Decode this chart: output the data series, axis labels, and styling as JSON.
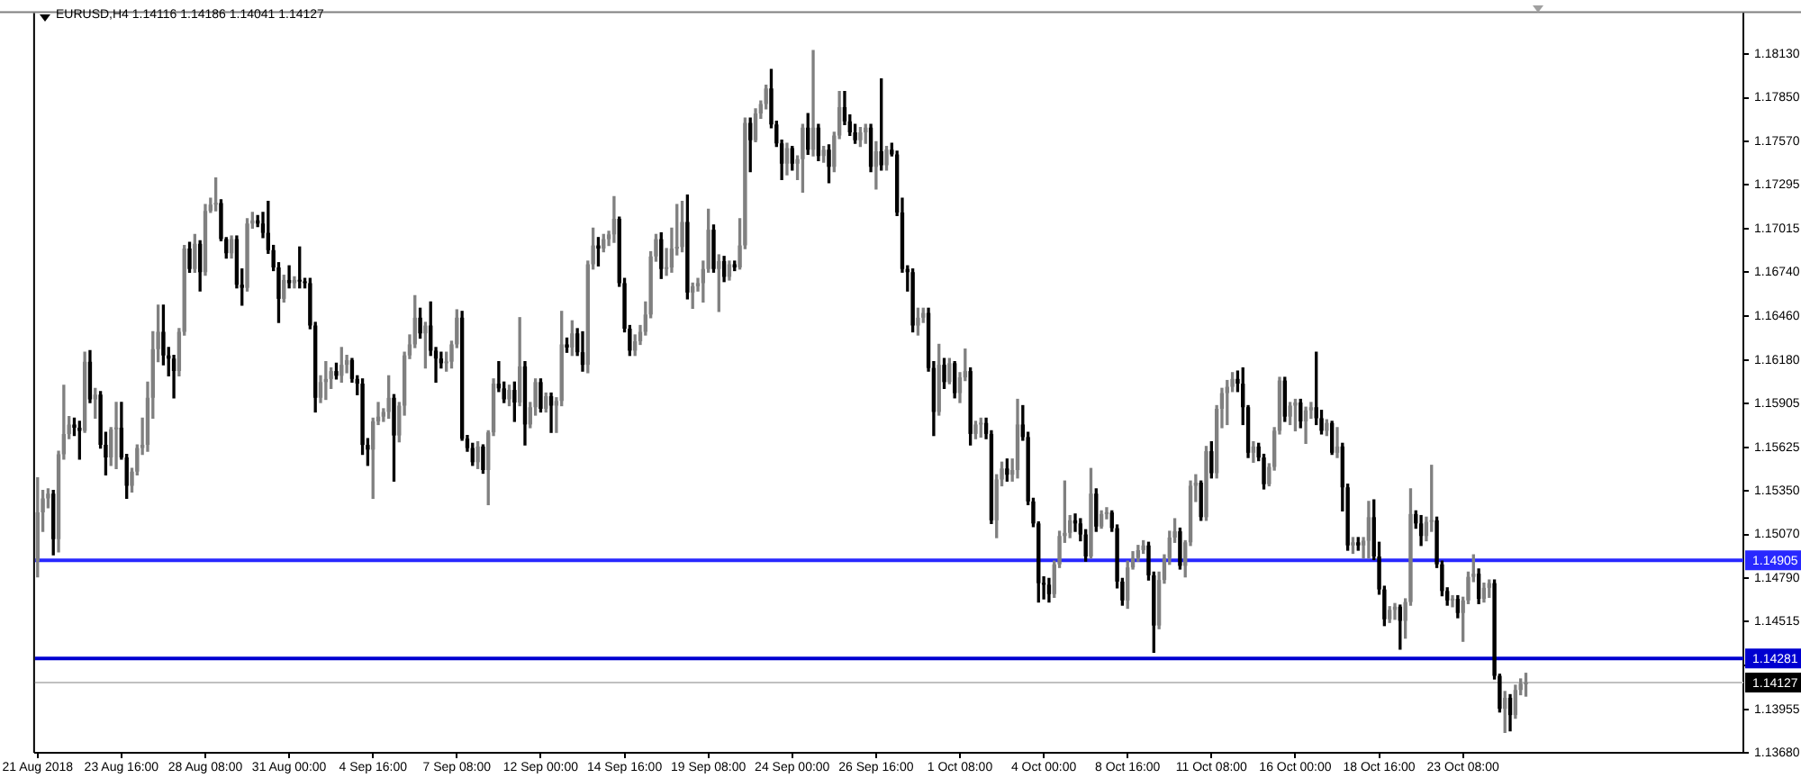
{
  "chart_data": {
    "type": "candlestick",
    "title": "EURUSD,H4 1.14116 1.14186 1.14041 1.14127",
    "categories": [
      "21 Aug 2018",
      null,
      null,
      null,
      null,
      null,
      null,
      null,
      null,
      null,
      null,
      null,
      null,
      null,
      null,
      null,
      "23 Aug 16:00",
      null,
      null,
      null,
      null,
      null,
      null,
      null,
      null,
      null,
      null,
      null,
      null,
      null,
      null,
      null,
      "28 Aug 08:00",
      null,
      null,
      null,
      null,
      null,
      null,
      null,
      null,
      null,
      null,
      null,
      null,
      null,
      null,
      null,
      "31 Aug 00:00",
      null,
      null,
      null,
      null,
      null,
      null,
      null,
      null,
      null,
      null,
      null,
      null,
      null,
      null,
      null,
      "4 Sep 16:00",
      null,
      null,
      null,
      null,
      null,
      null,
      null,
      null,
      null,
      null,
      null,
      null,
      null,
      null,
      null,
      "7 Sep 08:00",
      null,
      null,
      null,
      null,
      null,
      null,
      null,
      null,
      null,
      null,
      null,
      null,
      null,
      null,
      null,
      "12 Sep 00:00",
      null,
      null,
      null,
      null,
      null,
      null,
      null,
      null,
      null,
      null,
      null,
      null,
      null,
      null,
      null,
      "14 Sep 16:00",
      null,
      null,
      null,
      null,
      null,
      null,
      null,
      null,
      null,
      null,
      null,
      null,
      null,
      null,
      null,
      "19 Sep 08:00",
      null,
      null,
      null,
      null,
      null,
      null,
      null,
      null,
      null,
      null,
      null,
      null,
      null,
      null,
      null,
      "24 Sep 00:00",
      null,
      null,
      null,
      null,
      null,
      null,
      null,
      null,
      null,
      null,
      null,
      null,
      null,
      null,
      null,
      "26 Sep 16:00",
      null,
      null,
      null,
      null,
      null,
      null,
      null,
      null,
      null,
      null,
      null,
      null,
      null,
      null,
      null,
      "1 Oct 08:00",
      null,
      null,
      null,
      null,
      null,
      null,
      null,
      null,
      null,
      null,
      null,
      null,
      null,
      null,
      null,
      "4 Oct 00:00",
      null,
      null,
      null,
      null,
      null,
      null,
      null,
      null,
      null,
      null,
      null,
      null,
      null,
      null,
      null,
      "8 Oct 16:00",
      null,
      null,
      null,
      null,
      null,
      null,
      null,
      null,
      null,
      null,
      null,
      null,
      null,
      null,
      null,
      "11 Oct 08:00",
      null,
      null,
      null,
      null,
      null,
      null,
      null,
      null,
      null,
      null,
      null,
      null,
      null,
      null,
      null,
      "16 Oct 00:00",
      null,
      null,
      null,
      null,
      null,
      null,
      null,
      null,
      null,
      null,
      null,
      null,
      null,
      null,
      null,
      "18 Oct 16:00",
      null,
      null,
      null,
      null,
      null,
      null,
      null,
      null,
      null,
      null,
      null,
      null,
      null,
      null,
      null,
      "23 Oct 08:00",
      null,
      null,
      null,
      null,
      null,
      null,
      null,
      null,
      null,
      null,
      null,
      null,
      null,
      null,
      null,
      null,
      null,
      null,
      null,
      null,
      null,
      null,
      null,
      null,
      null,
      null,
      null,
      null,
      null,
      null,
      null,
      null,
      null,
      null,
      null,
      null,
      null,
      null,
      null,
      null,
      null,
      null,
      null,
      null,
      null,
      null,
      null,
      null,
      null,
      null,
      null,
      null,
      null
    ],
    "ohlc": [
      [
        1.149,
        1.1543,
        1.148,
        1.1521
      ],
      [
        1.1521,
        1.1535,
        1.1509,
        1.153
      ],
      [
        1.153,
        1.1536,
        1.1524,
        1.1533
      ],
      [
        1.1533,
        1.1535,
        1.1494,
        1.1504
      ],
      [
        1.1504,
        1.156,
        1.1496,
        1.1558
      ],
      [
        1.1558,
        1.1602,
        1.1555,
        1.1571
      ],
      [
        1.1571,
        1.1582,
        1.1568,
        1.1577
      ],
      [
        1.1577,
        1.1581,
        1.157,
        1.1575
      ],
      [
        1.1575,
        1.1579,
        1.1555,
        1.1573
      ],
      [
        1.1573,
        1.1623,
        1.1572,
        1.1617
      ],
      [
        1.1617,
        1.1624,
        1.1591,
        1.1593
      ],
      [
        1.1593,
        1.16,
        1.1581,
        1.1596
      ],
      [
        1.1596,
        1.1598,
        1.1562,
        1.1564
      ],
      [
        1.1564,
        1.1572,
        1.1545,
        1.1556
      ],
      [
        1.1556,
        1.1575,
        1.1551,
        1.1574
      ],
      [
        1.1574,
        1.1591,
        1.1549,
        1.1575
      ],
      [
        1.1575,
        1.1591,
        1.1555,
        1.1556
      ],
      [
        1.1556,
        1.1558,
        1.153,
        1.1538
      ],
      [
        1.1538,
        1.1549,
        1.1534,
        1.1547
      ],
      [
        1.1547,
        1.1564,
        1.1545,
        1.1562
      ],
      [
        1.1562,
        1.1581,
        1.1558,
        1.1564
      ],
      [
        1.1564,
        1.1604,
        1.156,
        1.1594
      ],
      [
        1.1594,
        1.1636,
        1.1581,
        1.1625
      ],
      [
        1.1625,
        1.1653,
        1.1617,
        1.1636
      ],
      [
        1.1636,
        1.1653,
        1.1615,
        1.1621
      ],
      [
        1.1621,
        1.1626,
        1.1608,
        1.1619
      ],
      [
        1.1619,
        1.1621,
        1.1594,
        1.1611
      ],
      [
        1.1611,
        1.1638,
        1.1608,
        1.1636
      ],
      [
        1.1636,
        1.1691,
        1.1634,
        1.1689
      ],
      [
        1.1689,
        1.1693,
        1.1674,
        1.1676
      ],
      [
        1.1676,
        1.1698,
        1.1674,
        1.1692
      ],
      [
        1.1692,
        1.1694,
        1.1662,
        1.1674
      ],
      [
        1.1674,
        1.1717,
        1.1672,
        1.1713
      ],
      [
        1.1713,
        1.1721,
        1.1712,
        1.1717
      ],
      [
        1.1717,
        1.1734,
        1.1713,
        1.1718
      ],
      [
        1.1718,
        1.172,
        1.1694,
        1.1695
      ],
      [
        1.1695,
        1.1696,
        1.1683,
        1.1686
      ],
      [
        1.1686,
        1.1697,
        1.1683,
        1.1695
      ],
      [
        1.1695,
        1.1697,
        1.1664,
        1.1666
      ],
      [
        1.1666,
        1.1676,
        1.1653,
        1.1664
      ],
      [
        1.1664,
        1.1708,
        1.1662,
        1.1705
      ],
      [
        1.1705,
        1.1712,
        1.1702,
        1.1707
      ],
      [
        1.1707,
        1.171,
        1.1703,
        1.1705
      ],
      [
        1.1705,
        1.1712,
        1.1696,
        1.1699
      ],
      [
        1.1699,
        1.1719,
        1.1686,
        1.1688
      ],
      [
        1.1688,
        1.1691,
        1.1675,
        1.1677
      ],
      [
        1.1677,
        1.168,
        1.1642,
        1.1657
      ],
      [
        1.1657,
        1.1672,
        1.1655,
        1.1669
      ],
      [
        1.1669,
        1.1678,
        1.1664,
        1.1667
      ],
      [
        1.1667,
        1.1671,
        1.1664,
        1.1669
      ],
      [
        1.1669,
        1.169,
        1.1664,
        1.1668
      ],
      [
        1.1668,
        1.167,
        1.1664,
        1.1667
      ],
      [
        1.1667,
        1.167,
        1.1638,
        1.164
      ],
      [
        1.164,
        1.1642,
        1.1585,
        1.1594
      ],
      [
        1.1594,
        1.1608,
        1.1591,
        1.1604
      ],
      [
        1.1604,
        1.1617,
        1.1593,
        1.1606
      ],
      [
        1.1606,
        1.1613,
        1.16,
        1.1611
      ],
      [
        1.1611,
        1.1616,
        1.1606,
        1.1608
      ],
      [
        1.1608,
        1.1626,
        1.1604,
        1.1615
      ],
      [
        1.1615,
        1.1621,
        1.161,
        1.1618
      ],
      [
        1.1618,
        1.1619,
        1.1604,
        1.1606
      ],
      [
        1.1606,
        1.1608,
        1.1596,
        1.1603
      ],
      [
        1.1603,
        1.1606,
        1.1558,
        1.1564
      ],
      [
        1.1564,
        1.1568,
        1.1551,
        1.1561
      ],
      [
        1.1561,
        1.1581,
        1.153,
        1.1579
      ],
      [
        1.1579,
        1.1591,
        1.1577,
        1.1582
      ],
      [
        1.1582,
        1.1587,
        1.1579,
        1.1585
      ],
      [
        1.1585,
        1.1608,
        1.1581,
        1.1594
      ],
      [
        1.1594,
        1.1596,
        1.1541,
        1.157
      ],
      [
        1.157,
        1.1591,
        1.1566,
        1.1589
      ],
      [
        1.1589,
        1.1623,
        1.1583,
        1.1621
      ],
      [
        1.1621,
        1.1634,
        1.1619,
        1.1628
      ],
      [
        1.1628,
        1.1659,
        1.1626,
        1.1645
      ],
      [
        1.1645,
        1.1651,
        1.1632,
        1.1635
      ],
      [
        1.1635,
        1.1642,
        1.1613,
        1.164
      ],
      [
        1.164,
        1.1655,
        1.1621,
        1.1624
      ],
      [
        1.1624,
        1.1626,
        1.1604,
        1.1619
      ],
      [
        1.1619,
        1.1623,
        1.1613,
        1.1616
      ],
      [
        1.1616,
        1.1623,
        1.1611,
        1.1617
      ],
      [
        1.1617,
        1.163,
        1.1613,
        1.1628
      ],
      [
        1.1628,
        1.165,
        1.1626,
        1.1645
      ],
      [
        1.1645,
        1.1649,
        1.1567,
        1.1568
      ],
      [
        1.1568,
        1.157,
        1.156,
        1.1562
      ],
      [
        1.1562,
        1.1565,
        1.1551,
        1.1553
      ],
      [
        1.1553,
        1.1566,
        1.1549,
        1.1563
      ],
      [
        1.1563,
        1.1564,
        1.1546,
        1.1548
      ],
      [
        1.1548,
        1.1573,
        1.1526,
        1.1572
      ],
      [
        1.1572,
        1.1606,
        1.157,
        1.1603
      ],
      [
        1.1603,
        1.1617,
        1.1598,
        1.16
      ],
      [
        1.16,
        1.1604,
        1.1591,
        1.1593
      ],
      [
        1.1593,
        1.1602,
        1.1589,
        1.1599
      ],
      [
        1.1599,
        1.1604,
        1.1579,
        1.1591
      ],
      [
        1.1591,
        1.1645,
        1.1589,
        1.1614
      ],
      [
        1.1614,
        1.1617,
        1.1564,
        1.1577
      ],
      [
        1.1577,
        1.1591,
        1.1575,
        1.1588
      ],
      [
        1.1588,
        1.1606,
        1.1583,
        1.1604
      ],
      [
        1.1604,
        1.1606,
        1.1585,
        1.1587
      ],
      [
        1.1587,
        1.1597,
        1.1585,
        1.1595
      ],
      [
        1.1595,
        1.1597,
        1.1572,
        1.1589
      ],
      [
        1.1589,
        1.1594,
        1.1572,
        1.1592
      ],
      [
        1.1592,
        1.1649,
        1.1589,
        1.1628
      ],
      [
        1.1628,
        1.1632,
        1.1623,
        1.1626
      ],
      [
        1.1626,
        1.1643,
        1.1621,
        1.1635
      ],
      [
        1.1635,
        1.1638,
        1.1621,
        1.1623
      ],
      [
        1.1623,
        1.1636,
        1.1611,
        1.1615
      ],
      [
        1.1615,
        1.1681,
        1.161,
        1.1679
      ],
      [
        1.1679,
        1.1702,
        1.1676,
        1.1691
      ],
      [
        1.1691,
        1.1696,
        1.1678,
        1.1689
      ],
      [
        1.1689,
        1.1698,
        1.1687,
        1.1695
      ],
      [
        1.1695,
        1.17,
        1.1691,
        1.1698
      ],
      [
        1.1698,
        1.1722,
        1.1693,
        1.1708
      ],
      [
        1.1708,
        1.1709,
        1.1665,
        1.1667
      ],
      [
        1.1667,
        1.167,
        1.1636,
        1.1638
      ],
      [
        1.1638,
        1.164,
        1.1621,
        1.1624
      ],
      [
        1.1624,
        1.1634,
        1.1621,
        1.163
      ],
      [
        1.163,
        1.164,
        1.1628,
        1.1636
      ],
      [
        1.1636,
        1.1655,
        1.1634,
        1.1647
      ],
      [
        1.1647,
        1.1687,
        1.1645,
        1.1684
      ],
      [
        1.1684,
        1.1698,
        1.1681,
        1.1695
      ],
      [
        1.1695,
        1.1699,
        1.167,
        1.1676
      ],
      [
        1.1676,
        1.1689,
        1.1672,
        1.1677
      ],
      [
        1.1677,
        1.1702,
        1.1674,
        1.1689
      ],
      [
        1.1689,
        1.1717,
        1.1685,
        1.169
      ],
      [
        1.169,
        1.1719,
        1.1687,
        1.1706
      ],
      [
        1.1706,
        1.1723,
        1.1657,
        1.1661
      ],
      [
        1.1661,
        1.1667,
        1.1651,
        1.1665
      ],
      [
        1.1665,
        1.167,
        1.1662,
        1.1667
      ],
      [
        1.1667,
        1.1681,
        1.1655,
        1.1676
      ],
      [
        1.1676,
        1.1714,
        1.1674,
        1.1701
      ],
      [
        1.1701,
        1.1704,
        1.1674,
        1.1676
      ],
      [
        1.1676,
        1.1685,
        1.1649,
        1.1681
      ],
      [
        1.1681,
        1.1684,
        1.1668,
        1.1671
      ],
      [
        1.1671,
        1.1681,
        1.1669,
        1.1679
      ],
      [
        1.1679,
        1.1681,
        1.1675,
        1.1677
      ],
      [
        1.1677,
        1.1708,
        1.1676,
        1.1691
      ],
      [
        1.1691,
        1.1772,
        1.1689,
        1.1769
      ],
      [
        1.1769,
        1.1772,
        1.1738,
        1.1758
      ],
      [
        1.1758,
        1.1778,
        1.1757,
        1.1775
      ],
      [
        1.1775,
        1.1783,
        1.1772,
        1.1781
      ],
      [
        1.1781,
        1.1793,
        1.1778,
        1.1791
      ],
      [
        1.1791,
        1.1803,
        1.1766,
        1.1768
      ],
      [
        1.1768,
        1.177,
        1.1754,
        1.1756
      ],
      [
        1.1756,
        1.1758,
        1.1733,
        1.1743
      ],
      [
        1.1743,
        1.1756,
        1.1736,
        1.1753
      ],
      [
        1.1753,
        1.1754,
        1.1739,
        1.1743
      ],
      [
        1.1743,
        1.1748,
        1.1733,
        1.1746
      ],
      [
        1.1746,
        1.1768,
        1.1725,
        1.1766
      ],
      [
        1.1766,
        1.1775,
        1.1749,
        1.1752
      ],
      [
        1.1752,
        1.1815,
        1.1748,
        1.1766
      ],
      [
        1.1766,
        1.1768,
        1.1745,
        1.1748
      ],
      [
        1.1748,
        1.1754,
        1.1744,
        1.1752
      ],
      [
        1.1752,
        1.1755,
        1.1731,
        1.1741
      ],
      [
        1.1741,
        1.1763,
        1.1738,
        1.1761
      ],
      [
        1.1761,
        1.1789,
        1.1759,
        1.1779
      ],
      [
        1.1779,
        1.1789,
        1.1768,
        1.177
      ],
      [
        1.177,
        1.1774,
        1.1761,
        1.1763
      ],
      [
        1.1763,
        1.1768,
        1.1756,
        1.1758
      ],
      [
        1.1758,
        1.1766,
        1.1754,
        1.1763
      ],
      [
        1.1763,
        1.1768,
        1.1756,
        1.1766
      ],
      [
        1.1766,
        1.1768,
        1.1738,
        1.1741
      ],
      [
        1.1741,
        1.1757,
        1.1727,
        1.1751
      ],
      [
        1.1751,
        1.1797,
        1.1739,
        1.1742
      ],
      [
        1.1742,
        1.1754,
        1.1739,
        1.1752
      ],
      [
        1.1752,
        1.1756,
        1.1748,
        1.1749
      ],
      [
        1.1749,
        1.1751,
        1.171,
        1.1712
      ],
      [
        1.1712,
        1.1721,
        1.1674,
        1.1676
      ],
      [
        1.1676,
        1.1678,
        1.1662,
        1.1674
      ],
      [
        1.1674,
        1.1676,
        1.1636,
        1.164
      ],
      [
        1.164,
        1.1651,
        1.1634,
        1.1645
      ],
      [
        1.1645,
        1.1651,
        1.1642,
        1.1648
      ],
      [
        1.1648,
        1.1651,
        1.1611,
        1.1613
      ],
      [
        1.1613,
        1.1617,
        1.157,
        1.1585
      ],
      [
        1.1585,
        1.1628,
        1.1583,
        1.1615
      ],
      [
        1.1615,
        1.1619,
        1.16,
        1.1604
      ],
      [
        1.1604,
        1.1619,
        1.1603,
        1.1616
      ],
      [
        1.1616,
        1.1617,
        1.1594,
        1.1597
      ],
      [
        1.1597,
        1.161,
        1.1591,
        1.1607
      ],
      [
        1.1607,
        1.1625,
        1.1605,
        1.1611
      ],
      [
        1.1611,
        1.1613,
        1.1564,
        1.1571
      ],
      [
        1.1571,
        1.1579,
        1.1568,
        1.1577
      ],
      [
        1.1577,
        1.1581,
        1.1569,
        1.1578
      ],
      [
        1.1578,
        1.1581,
        1.1568,
        1.1571
      ],
      [
        1.1571,
        1.1573,
        1.1514,
        1.1516
      ],
      [
        1.1516,
        1.1545,
        1.1505,
        1.1542
      ],
      [
        1.1542,
        1.1553,
        1.1538,
        1.1549
      ],
      [
        1.1549,
        1.1555,
        1.1541,
        1.1545
      ],
      [
        1.1545,
        1.1555,
        1.1541,
        1.1548
      ],
      [
        1.1548,
        1.1593,
        1.1543,
        1.1577
      ],
      [
        1.1577,
        1.1589,
        1.1567,
        1.1569
      ],
      [
        1.1569,
        1.1572,
        1.1526,
        1.1528
      ],
      [
        1.1528,
        1.153,
        1.1512,
        1.1514
      ],
      [
        1.1514,
        1.1515,
        1.1464,
        1.1476
      ],
      [
        1.1476,
        1.148,
        1.1466,
        1.1475
      ],
      [
        1.1475,
        1.1479,
        1.1464,
        1.1469
      ],
      [
        1.1469,
        1.149,
        1.1467,
        1.1488
      ],
      [
        1.1488,
        1.1509,
        1.1486,
        1.1506
      ],
      [
        1.1506,
        1.1541,
        1.1502,
        1.1508
      ],
      [
        1.1508,
        1.1519,
        1.1505,
        1.1516
      ],
      [
        1.1516,
        1.152,
        1.1509,
        1.1514
      ],
      [
        1.1514,
        1.1517,
        1.1503,
        1.1507
      ],
      [
        1.1507,
        1.151,
        1.149,
        1.1493
      ],
      [
        1.1493,
        1.1549,
        1.1492,
        1.1533
      ],
      [
        1.1533,
        1.1536,
        1.1509,
        1.1512
      ],
      [
        1.1512,
        1.1522,
        1.1511,
        1.152
      ],
      [
        1.152,
        1.1524,
        1.1517,
        1.1521
      ],
      [
        1.1521,
        1.1522,
        1.1509,
        1.1511
      ],
      [
        1.1511,
        1.1513,
        1.1473,
        1.1477
      ],
      [
        1.1477,
        1.1479,
        1.1462,
        1.1465
      ],
      [
        1.1465,
        1.149,
        1.146,
        1.1486
      ],
      [
        1.1486,
        1.1496,
        1.1485,
        1.1492
      ],
      [
        1.1492,
        1.15,
        1.149,
        1.1497
      ],
      [
        1.1497,
        1.1503,
        1.1495,
        1.15
      ],
      [
        1.15,
        1.1502,
        1.1478,
        1.1481
      ],
      [
        1.1481,
        1.1483,
        1.1432,
        1.1449
      ],
      [
        1.1449,
        1.1483,
        1.1447,
        1.1478
      ],
      [
        1.1478,
        1.1494,
        1.1476,
        1.1492
      ],
      [
        1.1492,
        1.1509,
        1.1488,
        1.1505
      ],
      [
        1.1505,
        1.1517,
        1.1502,
        1.1509
      ],
      [
        1.1509,
        1.1511,
        1.1485,
        1.1487
      ],
      [
        1.1487,
        1.1503,
        1.148,
        1.1502
      ],
      [
        1.1502,
        1.1541,
        1.15,
        1.1538
      ],
      [
        1.1538,
        1.1545,
        1.1528,
        1.154
      ],
      [
        1.154,
        1.1541,
        1.1516,
        1.1518
      ],
      [
        1.1518,
        1.1563,
        1.1516,
        1.156
      ],
      [
        1.156,
        1.1566,
        1.1543,
        1.1546
      ],
      [
        1.1546,
        1.1589,
        1.1543,
        1.1587
      ],
      [
        1.1587,
        1.16,
        1.1575,
        1.1597
      ],
      [
        1.1597,
        1.1605,
        1.1577,
        1.1601
      ],
      [
        1.1601,
        1.161,
        1.1598,
        1.1606
      ],
      [
        1.1606,
        1.1611,
        1.1598,
        1.1603
      ],
      [
        1.1603,
        1.1613,
        1.1577,
        1.1588
      ],
      [
        1.1588,
        1.1589,
        1.1556,
        1.1559
      ],
      [
        1.1559,
        1.1566,
        1.1553,
        1.1563
      ],
      [
        1.1563,
        1.1565,
        1.1554,
        1.1556
      ],
      [
        1.1556,
        1.1558,
        1.1536,
        1.1539
      ],
      [
        1.1539,
        1.1552,
        1.1538,
        1.155
      ],
      [
        1.155,
        1.1575,
        1.1548,
        1.1573
      ],
      [
        1.1573,
        1.1607,
        1.1571,
        1.1605
      ],
      [
        1.1605,
        1.1607,
        1.1579,
        1.1582
      ],
      [
        1.1582,
        1.1591,
        1.1577,
        1.1589
      ],
      [
        1.1589,
        1.1593,
        1.1573,
        1.1591
      ],
      [
        1.1591,
        1.1593,
        1.1575,
        1.1579
      ],
      [
        1.1579,
        1.1588,
        1.1565,
        1.1586
      ],
      [
        1.1586,
        1.1591,
        1.1581,
        1.1588
      ],
      [
        1.1588,
        1.1623,
        1.1577,
        1.1581
      ],
      [
        1.1581,
        1.1586,
        1.1571,
        1.1573
      ],
      [
        1.1573,
        1.158,
        1.157,
        1.1578
      ],
      [
        1.1578,
        1.1579,
        1.1558,
        1.1559
      ],
      [
        1.1559,
        1.1575,
        1.1556,
        1.1563
      ],
      [
        1.1563,
        1.1565,
        1.1522,
        1.1537
      ],
      [
        1.1537,
        1.1539,
        1.1497,
        1.15
      ],
      [
        1.15,
        1.1505,
        1.1495,
        1.1502
      ],
      [
        1.1502,
        1.1505,
        1.1497,
        1.15
      ],
      [
        1.15,
        1.1505,
        1.1492,
        1.1503
      ],
      [
        1.1503,
        1.1528,
        1.1492,
        1.1518
      ],
      [
        1.1518,
        1.1529,
        1.1491,
        1.1493
      ],
      [
        1.1493,
        1.1502,
        1.1469,
        1.1472
      ],
      [
        1.1472,
        1.1474,
        1.1449,
        1.1453
      ],
      [
        1.1453,
        1.1461,
        1.1451,
        1.1459
      ],
      [
        1.1459,
        1.1463,
        1.1453,
        1.1461
      ],
      [
        1.1461,
        1.1462,
        1.1434,
        1.1452
      ],
      [
        1.1452,
        1.1466,
        1.1441,
        1.1464
      ],
      [
        1.1464,
        1.1536,
        1.1462,
        1.152
      ],
      [
        1.152,
        1.1522,
        1.1511,
        1.1514
      ],
      [
        1.1514,
        1.1519,
        1.15,
        1.1506
      ],
      [
        1.1506,
        1.1518,
        1.1503,
        1.1515
      ],
      [
        1.1515,
        1.1551,
        1.1509,
        1.1516
      ],
      [
        1.1516,
        1.1518,
        1.1486,
        1.1488
      ],
      [
        1.1488,
        1.149,
        1.1468,
        1.1471
      ],
      [
        1.1471,
        1.1473,
        1.1462,
        1.1465
      ],
      [
        1.1465,
        1.1468,
        1.1461,
        1.1466
      ],
      [
        1.1466,
        1.1468,
        1.1454,
        1.1457
      ],
      [
        1.1457,
        1.1467,
        1.1439,
        1.1465
      ],
      [
        1.1465,
        1.1483,
        1.1463,
        1.148
      ],
      [
        1.148,
        1.1494,
        1.1477,
        1.1482
      ],
      [
        1.1482,
        1.1485,
        1.1463,
        1.1466
      ],
      [
        1.1466,
        1.1476,
        1.1464,
        1.1473
      ],
      [
        1.1473,
        1.1478,
        1.1467,
        1.1476
      ],
      [
        1.1476,
        1.1478,
        1.1415,
        1.1417
      ],
      [
        1.1417,
        1.1418,
        1.1394,
        1.1396
      ],
      [
        1.1396,
        1.1407,
        1.1381,
        1.1403
      ],
      [
        1.1403,
        1.1405,
        1.1382,
        1.1392
      ],
      [
        1.1392,
        1.1411,
        1.139,
        1.1408
      ],
      [
        1.1408,
        1.1415,
        1.1405,
        1.1412
      ],
      [
        1.14116,
        1.14186,
        1.14041,
        1.14127
      ],
      null,
      null,
      null,
      null,
      null,
      null,
      null,
      null,
      null,
      null,
      null,
      null,
      null,
      null,
      null,
      null,
      null,
      null,
      null,
      null,
      null,
      null,
      null,
      null,
      null,
      null,
      null,
      null,
      null,
      null,
      null,
      null,
      null,
      null,
      null,
      null,
      null,
      null,
      null,
      null,
      null
    ],
    "colors": [
      "#808080",
      "#808080",
      "#808080",
      "#000000",
      "#808080",
      "#808080",
      "#808080",
      "#000000",
      "#000000",
      "#808080",
      "#000000",
      "#808080",
      "#000000",
      "#000000",
      "#808080",
      "#808080",
      "#000000",
      "#000000",
      "#808080",
      "#808080",
      "#808080",
      "#808080",
      "#808080",
      "#808080",
      "#000000",
      "#000000",
      "#000000",
      "#808080",
      "#808080",
      "#000000",
      "#808080",
      "#000000",
      "#808080",
      "#808080",
      "#808080",
      "#000000",
      "#000000",
      "#808080",
      "#000000",
      "#000000",
      "#808080",
      "#808080",
      "#000000",
      "#000000",
      "#000000",
      "#000000",
      "#000000",
      "#808080",
      "#000000",
      "#808080",
      "#000000",
      "#000000",
      "#000000",
      "#000000",
      "#808080",
      "#808080",
      "#808080",
      "#000000",
      "#808080",
      "#808080",
      "#000000",
      "#000000",
      "#000000",
      "#000000",
      "#808080",
      "#808080",
      "#808080",
      "#808080",
      "#000000",
      "#808080",
      "#808080",
      "#808080",
      "#808080",
      "#000000",
      "#808080",
      "#000000",
      "#000000",
      "#000000",
      "#808080",
      "#808080",
      "#808080",
      "#000000",
      "#000000",
      "#000000",
      "#808080",
      "#000000",
      "#808080",
      "#808080",
      "#000000",
      "#000000",
      "#808080",
      "#000000",
      "#808080",
      "#000000",
      "#808080",
      "#808080",
      "#000000",
      "#808080",
      "#000000",
      "#808080",
      "#808080",
      "#000000",
      "#808080",
      "#000000",
      "#000000",
      "#808080",
      "#808080",
      "#000000",
      "#808080",
      "#808080",
      "#808080",
      "#000000",
      "#000000",
      "#000000",
      "#808080",
      "#808080",
      "#808080",
      "#808080",
      "#808080",
      "#000000",
      "#808080",
      "#808080",
      "#808080",
      "#808080",
      "#000000",
      "#808080",
      "#808080",
      "#808080",
      "#808080",
      "#000000",
      "#808080",
      "#000000",
      "#808080",
      "#000000",
      "#808080",
      "#808080",
      "#000000",
      "#808080",
      "#808080",
      "#808080",
      "#000000",
      "#000000",
      "#000000",
      "#808080",
      "#000000",
      "#808080",
      "#808080",
      "#000000",
      "#808080",
      "#000000",
      "#808080",
      "#000000",
      "#808080",
      "#808080",
      "#000000",
      "#000000",
      "#000000",
      "#808080",
      "#808080",
      "#000000",
      "#808080",
      "#000000",
      "#808080",
      "#000000",
      "#000000",
      "#000000",
      "#000000",
      "#000000",
      "#808080",
      "#808080",
      "#000000",
      "#000000",
      "#808080",
      "#000000",
      "#808080",
      "#000000",
      "#808080",
      "#808080",
      "#000000",
      "#808080",
      "#808080",
      "#000000",
      "#000000",
      "#808080",
      "#808080",
      "#000000",
      "#808080",
      "#808080",
      "#000000",
      "#000000",
      "#000000",
      "#000000",
      "#000000",
      "#000000",
      "#808080",
      "#808080",
      "#808080",
      "#808080",
      "#000000",
      "#000000",
      "#000000",
      "#808080",
      "#000000",
      "#808080",
      "#808080",
      "#000000",
      "#000000",
      "#000000",
      "#808080",
      "#808080",
      "#808080",
      "#808080",
      "#000000",
      "#000000",
      "#808080",
      "#808080",
      "#808080",
      "#808080",
      "#000000",
      "#808080",
      "#808080",
      "#808080",
      "#000000",
      "#808080",
      "#000000",
      "#808080",
      "#808080",
      "#808080",
      "#808080",
      "#000000",
      "#000000",
      "#000000",
      "#808080",
      "#000000",
      "#000000",
      "#808080",
      "#808080",
      "#808080",
      "#000000",
      "#808080",
      "#808080",
      "#000000",
      "#808080",
      "#808080",
      "#000000",
      "#000000",
      "#808080",
      "#000000",
      "#808080",
      "#000000",
      "#000000",
      "#808080",
      "#000000",
      "#808080",
      "#808080",
      "#000000",
      "#000000",
      "#000000",
      "#808080",
      "#808080",
      "#000000",
      "#808080",
      "#808080",
      "#000000",
      "#000000",
      "#808080",
      "#808080",
      "#000000",
      "#000000",
      "#000000",
      "#808080",
      "#000000",
      "#808080",
      "#808080",
      "#808080",
      "#000000",
      "#808080",
      "#808080",
      "#000000",
      "#000000",
      "#808080",
      "#000000",
      "#808080",
      "#808080",
      "#808080",
      null,
      null,
      null,
      null,
      null,
      null,
      null,
      null,
      null,
      null,
      null,
      null,
      null,
      null,
      null,
      null,
      null,
      null,
      null,
      null,
      null,
      null,
      null,
      null,
      null,
      null,
      null,
      null,
      null,
      null,
      null,
      null,
      null,
      null,
      null,
      null,
      null,
      null,
      null,
      null,
      null
    ],
    "ylim": [
      1.1368,
      1.1839
    ],
    "yticks": [
      {
        "value": 1.1368,
        "label": "1.13680"
      },
      1.13955,
      {
        "value": 1.14235,
        "label": null
      },
      1.14515,
      {
        "value": 1.1479,
        "label": "1.14790"
      },
      {
        "value": 1.1507,
        "label": "1.15070"
      },
      {
        "value": 1.1535,
        "label": "1.15350"
      },
      1.15625,
      1.15905,
      {
        "value": 1.1618,
        "label": "1.16180"
      },
      {
        "value": 1.1646,
        "label": "1.16460"
      },
      {
        "value": 1.1674,
        "label": "1.16740"
      },
      1.17015,
      1.17295,
      {
        "value": 1.1757,
        "label": "1.17570"
      },
      {
        "value": 1.1785,
        "label": "1.17850"
      },
      {
        "value": 1.1813,
        "label": "1.18130"
      }
    ],
    "grid": false,
    "legend": false,
    "ref_lines": [
      {
        "axis": "y",
        "value": 1.14905,
        "label": "1.14905",
        "color": "#2828ff"
      },
      {
        "axis": "y",
        "value": 1.14281,
        "label": "1.14281",
        "color": "#0000d0"
      },
      {
        "axis": "y",
        "value": 1.14127,
        "label": "1.14127",
        "color": "#c0c0c0"
      }
    ]
  }
}
